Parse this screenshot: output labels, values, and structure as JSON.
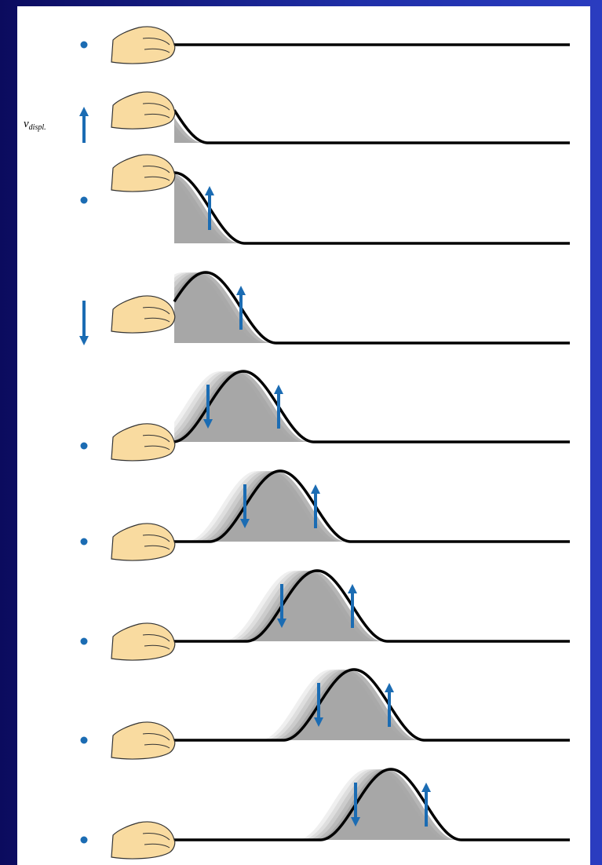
{
  "velocity_label": {
    "symbol": "v",
    "subscript": "displ."
  }
}
